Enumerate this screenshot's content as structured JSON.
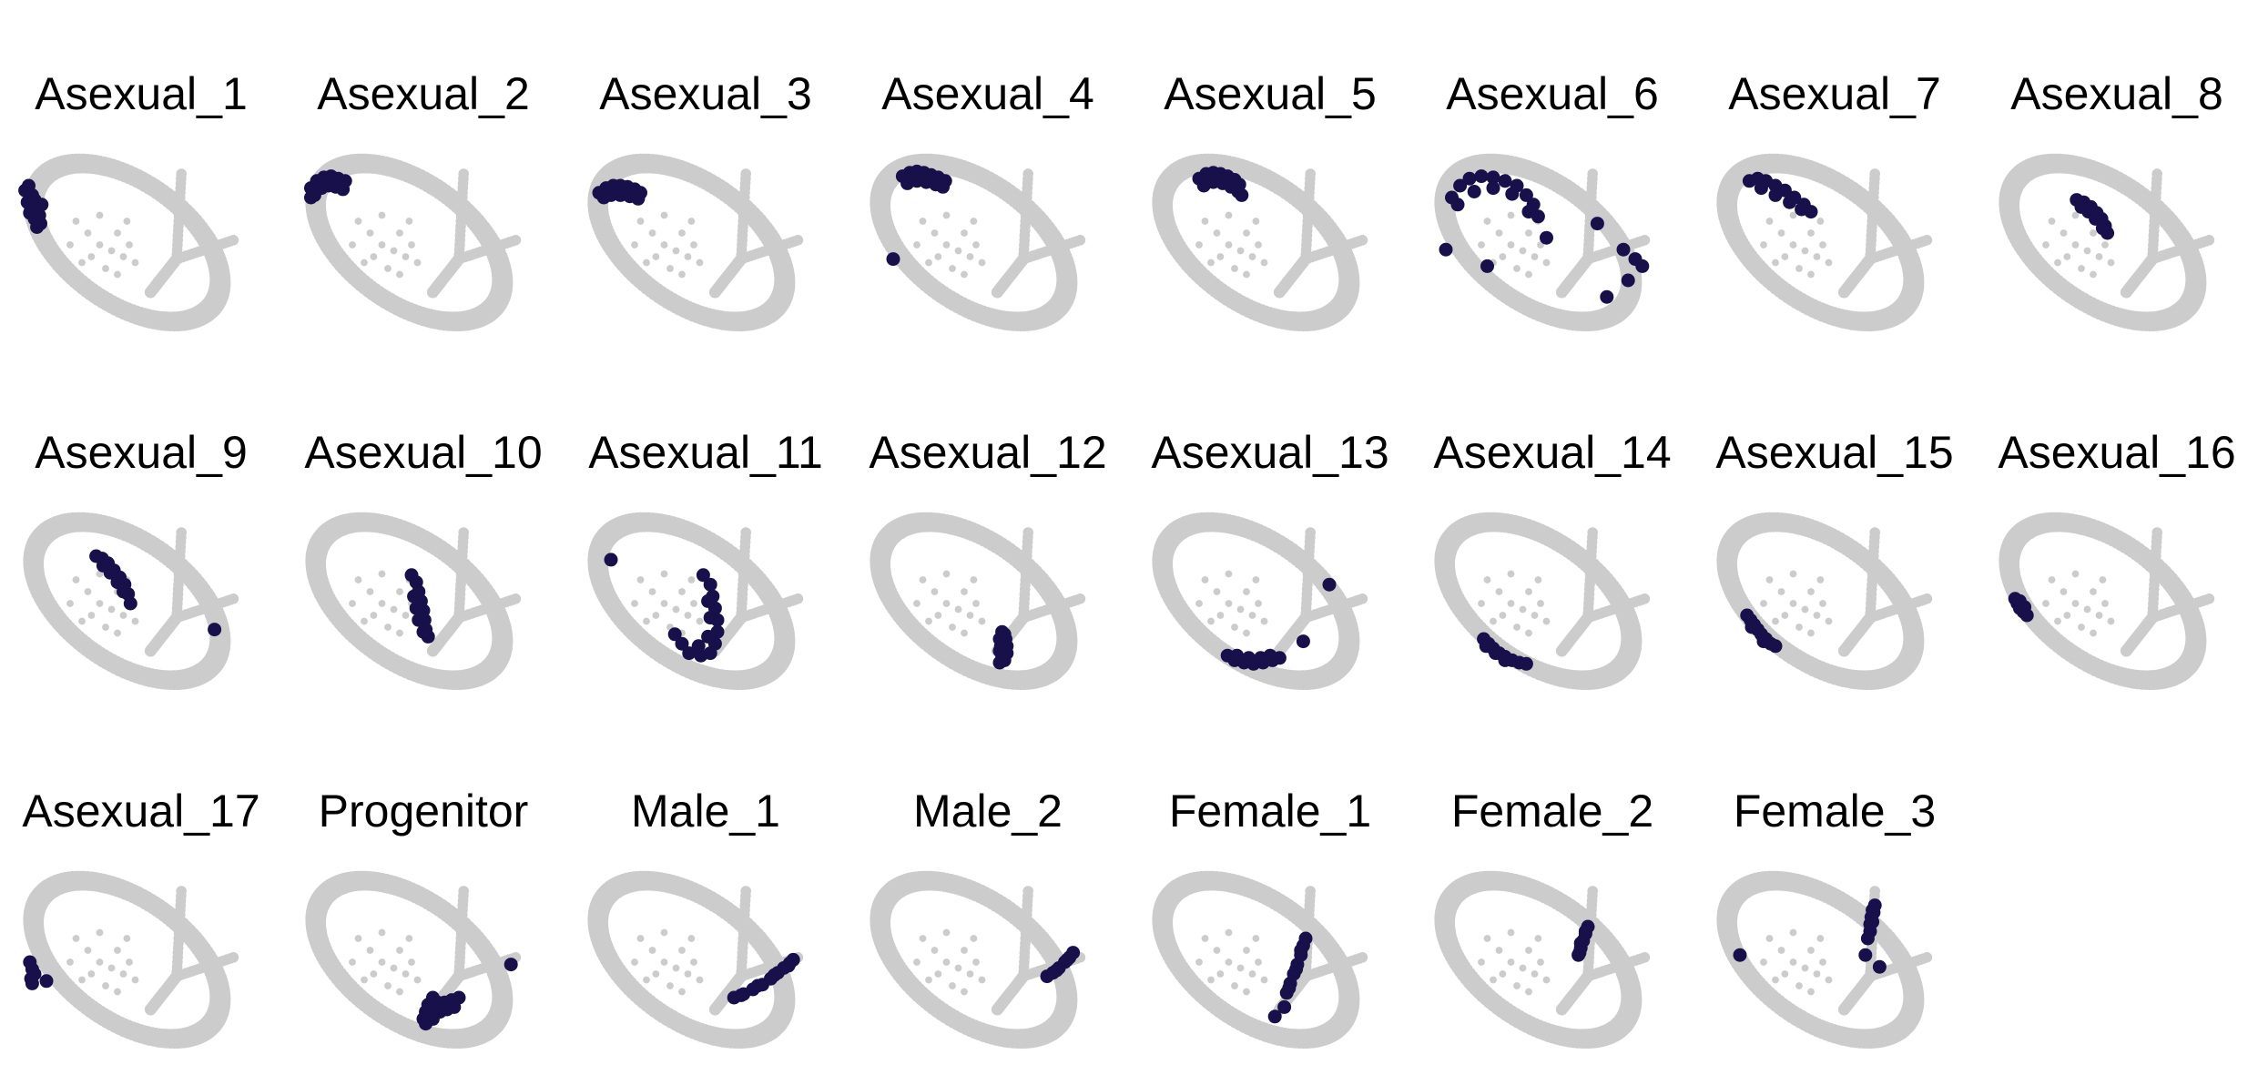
{
  "chart_data": {
    "type": "scatter",
    "facet_layout": {
      "rows": 3,
      "columns": 8
    },
    "background_color": "#cccccc",
    "highlight_color": "#17104a",
    "grid": false,
    "axes_shown": false,
    "panels": [
      {
        "title": "Asexual_1",
        "highlight_points": [
          [
            -0.98,
            0.16
          ],
          [
            -0.95,
            0.2
          ],
          [
            -0.92,
            0.12
          ],
          [
            -0.96,
            0.06
          ],
          [
            -0.93,
            0.02
          ],
          [
            -0.9,
            0.08
          ],
          [
            -0.88,
            0.0
          ],
          [
            -0.86,
            -0.05
          ],
          [
            -0.9,
            -0.08
          ],
          [
            -0.94,
            -0.03
          ],
          [
            -0.85,
            -0.12
          ],
          [
            -0.88,
            -0.15
          ],
          [
            -0.84,
            0.04
          ]
        ]
      },
      {
        "title": "Asexual_2",
        "highlight_points": [
          [
            -0.95,
            0.18
          ],
          [
            -0.9,
            0.24
          ],
          [
            -0.84,
            0.27
          ],
          [
            -0.78,
            0.28
          ],
          [
            -0.72,
            0.26
          ],
          [
            -0.66,
            0.24
          ],
          [
            -0.92,
            0.12
          ],
          [
            -0.86,
            0.18
          ],
          [
            -0.8,
            0.2
          ],
          [
            -0.74,
            0.19
          ],
          [
            -0.68,
            0.17
          ],
          [
            -0.95,
            0.1
          ]
        ]
      },
      {
        "title": "Asexual_3",
        "highlight_points": [
          [
            -0.9,
            0.14
          ],
          [
            -0.84,
            0.18
          ],
          [
            -0.78,
            0.2
          ],
          [
            -0.72,
            0.2
          ],
          [
            -0.66,
            0.19
          ],
          [
            -0.6,
            0.17
          ],
          [
            -0.55,
            0.14
          ],
          [
            -0.86,
            0.1
          ],
          [
            -0.8,
            0.12
          ],
          [
            -0.72,
            0.12
          ],
          [
            -0.64,
            0.11
          ],
          [
            -0.57,
            0.09
          ]
        ]
      },
      {
        "title": "Asexual_4",
        "highlight_points": [
          [
            -0.72,
            0.28
          ],
          [
            -0.66,
            0.31
          ],
          [
            -0.6,
            0.32
          ],
          [
            -0.54,
            0.31
          ],
          [
            -0.48,
            0.29
          ],
          [
            -0.42,
            0.27
          ],
          [
            -0.36,
            0.24
          ],
          [
            -0.68,
            0.22
          ],
          [
            -0.6,
            0.24
          ],
          [
            -0.52,
            0.23
          ],
          [
            -0.44,
            0.21
          ],
          [
            -0.38,
            0.19
          ],
          [
            -0.8,
            -0.42
          ]
        ]
      },
      {
        "title": "Asexual_5",
        "highlight_points": [
          [
            -0.6,
            0.26
          ],
          [
            -0.54,
            0.3
          ],
          [
            -0.48,
            0.31
          ],
          [
            -0.42,
            0.3
          ],
          [
            -0.36,
            0.28
          ],
          [
            -0.3,
            0.25
          ],
          [
            -0.26,
            0.21
          ],
          [
            -0.56,
            0.2
          ],
          [
            -0.48,
            0.23
          ],
          [
            -0.4,
            0.22
          ],
          [
            -0.33,
            0.19
          ],
          [
            -0.27,
            0.15
          ],
          [
            -0.24,
            0.12
          ]
        ]
      },
      {
        "title": "Asexual_6",
        "highlight_points": [
          [
            -0.85,
            0.1
          ],
          [
            -0.78,
            0.2
          ],
          [
            -0.7,
            0.26
          ],
          [
            -0.6,
            0.28
          ],
          [
            -0.5,
            0.27
          ],
          [
            -0.4,
            0.24
          ],
          [
            -0.3,
            0.2
          ],
          [
            -0.22,
            0.12
          ],
          [
            -0.16,
            0.04
          ],
          [
            -0.12,
            -0.06
          ],
          [
            -0.8,
            0.04
          ],
          [
            -0.66,
            0.15
          ],
          [
            -0.5,
            0.18
          ],
          [
            -0.34,
            0.13
          ],
          [
            -0.2,
            -0.02
          ],
          [
            -0.9,
            -0.34
          ],
          [
            -0.55,
            -0.48
          ],
          [
            -0.05,
            -0.24
          ],
          [
            0.38,
            -0.12
          ],
          [
            0.6,
            -0.34
          ],
          [
            0.7,
            -0.42
          ],
          [
            0.76,
            -0.48
          ],
          [
            0.64,
            -0.6
          ],
          [
            0.46,
            -0.74
          ]
        ]
      },
      {
        "title": "Asexual_7",
        "highlight_points": [
          [
            -0.72,
            0.24
          ],
          [
            -0.65,
            0.26
          ],
          [
            -0.58,
            0.24
          ],
          [
            -0.5,
            0.2
          ],
          [
            -0.42,
            0.16
          ],
          [
            -0.34,
            0.1
          ],
          [
            -0.26,
            0.04
          ],
          [
            -0.2,
            -0.02
          ],
          [
            -0.62,
            0.18
          ],
          [
            -0.5,
            0.12
          ],
          [
            -0.38,
            0.06
          ],
          [
            -0.28,
            0.0
          ]
        ]
      },
      {
        "title": "Asexual_8",
        "highlight_points": [
          [
            -0.34,
            0.08
          ],
          [
            -0.28,
            0.06
          ],
          [
            -0.22,
            0.02
          ],
          [
            -0.17,
            -0.03
          ],
          [
            -0.13,
            -0.08
          ],
          [
            -0.1,
            -0.14
          ],
          [
            -0.3,
            0.02
          ],
          [
            -0.24,
            -0.02
          ],
          [
            -0.18,
            -0.08
          ],
          [
            -0.12,
            -0.16
          ],
          [
            -0.08,
            -0.2
          ]
        ]
      },
      {
        "title": "Asexual_9",
        "highlight_points": [
          [
            -0.38,
            0.1
          ],
          [
            -0.33,
            0.08
          ],
          [
            -0.28,
            0.04
          ],
          [
            -0.23,
            -0.02
          ],
          [
            -0.18,
            -0.08
          ],
          [
            -0.14,
            -0.14
          ],
          [
            -0.11,
            -0.22
          ],
          [
            -0.09,
            -0.3
          ],
          [
            -0.32,
            0.02
          ],
          [
            -0.26,
            -0.04
          ],
          [
            -0.2,
            -0.12
          ],
          [
            -0.15,
            -0.2
          ],
          [
            0.62,
            -0.52
          ]
        ]
      },
      {
        "title": "Asexual_10",
        "highlight_points": [
          [
            -0.1,
            -0.06
          ],
          [
            -0.06,
            -0.12
          ],
          [
            -0.04,
            -0.2
          ],
          [
            -0.02,
            -0.28
          ],
          [
            0.0,
            -0.36
          ],
          [
            0.01,
            -0.44
          ],
          [
            0.02,
            -0.52
          ],
          [
            0.04,
            -0.58
          ],
          [
            -0.08,
            -0.24
          ],
          [
            -0.06,
            -0.34
          ],
          [
            -0.04,
            -0.44
          ],
          [
            0.0,
            -0.54
          ]
        ]
      },
      {
        "title": "Asexual_11",
        "highlight_points": [
          [
            -0.8,
            0.07
          ],
          [
            -0.02,
            -0.06
          ],
          [
            0.04,
            -0.14
          ],
          [
            0.06,
            -0.24
          ],
          [
            0.08,
            -0.34
          ],
          [
            0.1,
            -0.44
          ],
          [
            0.1,
            -0.54
          ],
          [
            0.08,
            -0.64
          ],
          [
            0.04,
            -0.72
          ],
          [
            -0.04,
            -0.74
          ],
          [
            -0.14,
            -0.72
          ],
          [
            0.02,
            -0.28
          ],
          [
            0.04,
            -0.42
          ],
          [
            0.02,
            -0.58
          ],
          [
            -0.06,
            -0.66
          ],
          [
            -0.2,
            -0.64
          ],
          [
            -0.26,
            -0.56
          ]
        ]
      },
      {
        "title": "Asexual_12",
        "highlight_points": [
          [
            0.12,
            -0.54
          ],
          [
            0.15,
            -0.6
          ],
          [
            0.16,
            -0.66
          ],
          [
            0.16,
            -0.72
          ],
          [
            0.14,
            -0.78
          ],
          [
            0.1,
            -0.8
          ],
          [
            0.1,
            -0.6
          ],
          [
            0.1,
            -0.7
          ],
          [
            0.12,
            -0.76
          ],
          [
            0.14,
            -0.56
          ],
          [
            0.11,
            -0.66
          ]
        ]
      },
      {
        "title": "Asexual_13",
        "highlight_points": [
          [
            -0.36,
            -0.74
          ],
          [
            -0.3,
            -0.78
          ],
          [
            -0.22,
            -0.8
          ],
          [
            -0.14,
            -0.81
          ],
          [
            -0.06,
            -0.8
          ],
          [
            0.02,
            -0.78
          ],
          [
            0.08,
            -0.76
          ],
          [
            -0.28,
            -0.74
          ],
          [
            -0.18,
            -0.76
          ],
          [
            -0.08,
            -0.76
          ],
          [
            0.0,
            -0.74
          ],
          [
            0.28,
            -0.62
          ],
          [
            0.5,
            -0.14
          ]
        ]
      },
      {
        "title": "Asexual_14",
        "highlight_points": [
          [
            -0.58,
            -0.6
          ],
          [
            -0.54,
            -0.64
          ],
          [
            -0.5,
            -0.68
          ],
          [
            -0.45,
            -0.72
          ],
          [
            -0.4,
            -0.75
          ],
          [
            -0.34,
            -0.78
          ],
          [
            -0.28,
            -0.8
          ],
          [
            -0.22,
            -0.81
          ],
          [
            -0.56,
            -0.66
          ],
          [
            -0.48,
            -0.72
          ],
          [
            -0.4,
            -0.78
          ]
        ]
      },
      {
        "title": "Asexual_15",
        "highlight_points": [
          [
            -0.74,
            -0.4
          ],
          [
            -0.71,
            -0.44
          ],
          [
            -0.68,
            -0.48
          ],
          [
            -0.65,
            -0.52
          ],
          [
            -0.62,
            -0.56
          ],
          [
            -0.58,
            -0.6
          ],
          [
            -0.54,
            -0.64
          ],
          [
            -0.5,
            -0.66
          ],
          [
            -0.7,
            -0.5
          ],
          [
            -0.6,
            -0.62
          ]
        ]
      },
      {
        "title": "Asexual_16",
        "highlight_points": [
          [
            -0.86,
            -0.26
          ],
          [
            -0.84,
            -0.3
          ],
          [
            -0.82,
            -0.34
          ],
          [
            -0.79,
            -0.37
          ],
          [
            -0.76,
            -0.4
          ],
          [
            -0.82,
            -0.28
          ],
          [
            -0.78,
            -0.33
          ]
        ]
      },
      {
        "title": "Asexual_17",
        "highlight_points": [
          [
            -0.94,
            -0.3
          ],
          [
            -0.92,
            -0.36
          ],
          [
            -0.9,
            -0.4
          ],
          [
            -0.93,
            -0.44
          ],
          [
            -0.92,
            -0.48
          ],
          [
            -0.8,
            -0.46
          ]
        ]
      },
      {
        "title": "Progenitor",
        "highlight_points": [
          [
            0.08,
            -0.6
          ],
          [
            0.12,
            -0.64
          ],
          [
            0.18,
            -0.64
          ],
          [
            0.24,
            -0.62
          ],
          [
            0.3,
            -0.6
          ],
          [
            0.04,
            -0.66
          ],
          [
            0.02,
            -0.72
          ],
          [
            0.0,
            -0.78
          ],
          [
            0.02,
            -0.82
          ],
          [
            0.08,
            -0.78
          ],
          [
            0.14,
            -0.72
          ],
          [
            0.2,
            -0.7
          ],
          [
            0.26,
            -0.68
          ],
          [
            0.06,
            -0.7
          ],
          [
            0.12,
            -0.68
          ],
          [
            0.74,
            -0.32
          ]
        ]
      },
      {
        "title": "Male_1",
        "highlight_points": [
          [
            0.24,
            -0.6
          ],
          [
            0.32,
            -0.57
          ],
          [
            0.4,
            -0.53
          ],
          [
            0.48,
            -0.49
          ],
          [
            0.55,
            -0.44
          ],
          [
            0.61,
            -0.39
          ],
          [
            0.66,
            -0.35
          ],
          [
            0.71,
            -0.31
          ],
          [
            0.74,
            -0.28
          ],
          [
            0.3,
            -0.58
          ],
          [
            0.44,
            -0.5
          ],
          [
            0.58,
            -0.41
          ],
          [
            0.7,
            -0.33
          ]
        ]
      },
      {
        "title": "Male_2",
        "highlight_points": [
          [
            0.5,
            -0.42
          ],
          [
            0.55,
            -0.39
          ],
          [
            0.6,
            -0.35
          ],
          [
            0.65,
            -0.3
          ],
          [
            0.69,
            -0.26
          ],
          [
            0.72,
            -0.22
          ],
          [
            0.58,
            -0.37
          ],
          [
            0.67,
            -0.28
          ]
        ]
      },
      {
        "title": "Female_1",
        "highlight_points": [
          [
            0.14,
            -0.56
          ],
          [
            0.17,
            -0.48
          ],
          [
            0.2,
            -0.4
          ],
          [
            0.23,
            -0.32
          ],
          [
            0.26,
            -0.24
          ],
          [
            0.28,
            -0.16
          ],
          [
            0.3,
            -0.1
          ],
          [
            0.16,
            -0.52
          ],
          [
            0.22,
            -0.36
          ],
          [
            0.26,
            -0.2
          ],
          [
            0.04,
            -0.76
          ],
          [
            0.12,
            -0.68
          ]
        ]
      },
      {
        "title": "Female_2",
        "highlight_points": [
          [
            0.22,
            -0.24
          ],
          [
            0.24,
            -0.18
          ],
          [
            0.26,
            -0.12
          ],
          [
            0.28,
            -0.06
          ],
          [
            0.3,
            0.0
          ],
          [
            0.24,
            -0.14
          ],
          [
            0.28,
            -0.04
          ],
          [
            0.23,
            -0.22
          ]
        ]
      },
      {
        "title": "Female_3",
        "highlight_points": [
          [
            0.3,
            0.02
          ],
          [
            0.31,
            0.08
          ],
          [
            0.32,
            0.14
          ],
          [
            0.34,
            0.18
          ],
          [
            0.3,
            -0.04
          ],
          [
            0.28,
            -0.1
          ],
          [
            0.32,
            0.04
          ],
          [
            0.33,
            0.12
          ],
          [
            0.26,
            -0.24
          ],
          [
            0.38,
            -0.34
          ],
          [
            -0.8,
            -0.24
          ]
        ]
      }
    ]
  }
}
